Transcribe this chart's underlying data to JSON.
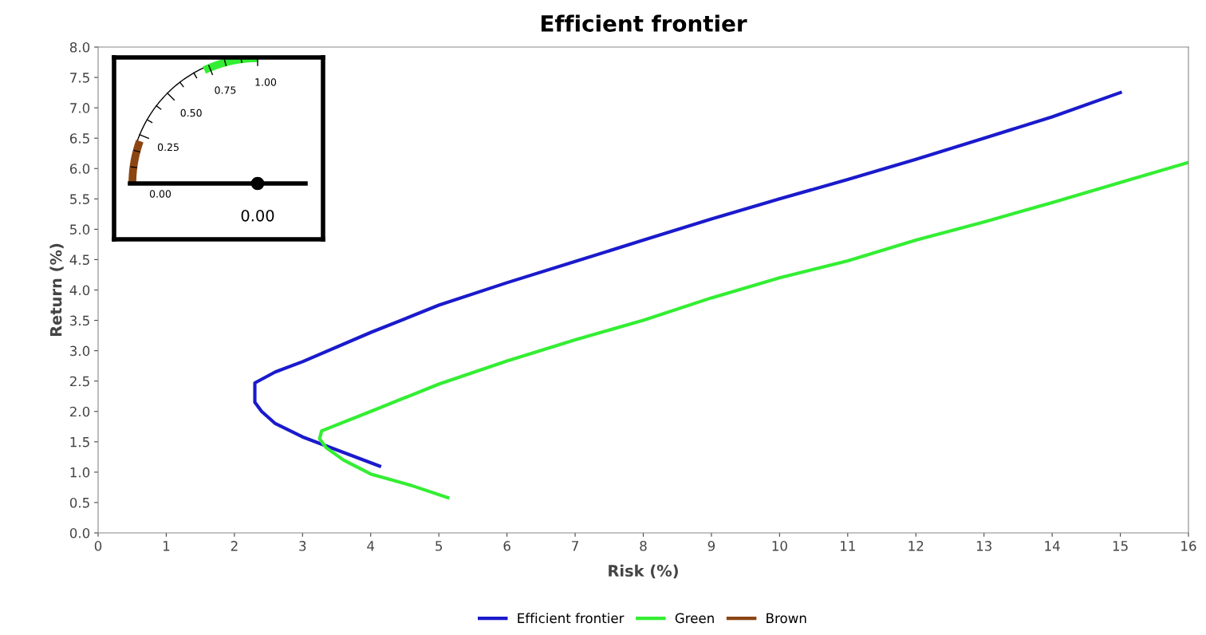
{
  "chart_data": [
    {
      "type": "line",
      "title": "Efficient frontier",
      "xlabel": "Risk (%)",
      "ylabel": "Return (%)",
      "xlim": [
        0,
        16
      ],
      "xticks": [
        0,
        1,
        2,
        3,
        4,
        5,
        6,
        7,
        8,
        9,
        10,
        11,
        12,
        13,
        14,
        15,
        16
      ],
      "ylim": [
        0.0,
        8.0
      ],
      "yticks": [
        {
          "value": 0,
          "label": "0.0"
        },
        {
          "value": 0.5,
          "label": "0.5"
        },
        {
          "value": 1,
          "label": "1.0"
        },
        {
          "value": 1.5,
          "label": "1.5"
        },
        {
          "value": 2,
          "label": "2.0"
        },
        {
          "value": 2.5,
          "label": "2.5"
        },
        {
          "value": 3,
          "label": "3.0"
        },
        {
          "value": 3.5,
          "label": "3.5"
        },
        {
          "value": 4,
          "label": "4.0"
        },
        {
          "value": 4.5,
          "label": "4.5"
        },
        {
          "value": 5,
          "label": "5.0"
        },
        {
          "value": 5.5,
          "label": "5.5"
        },
        {
          "value": 6,
          "label": "6.0"
        },
        {
          "value": 6.5,
          "label": "6.5"
        },
        {
          "value": 7,
          "label": "7.0"
        },
        {
          "value": 7.5,
          "label": "7.5"
        },
        {
          "value": 8,
          "label": "8.0"
        }
      ],
      "grid": false,
      "legend": "bottom",
      "marker": "none",
      "line_style": "solid",
      "series": [
        {
          "name": "Efficient frontier",
          "color": "#1a1acc",
          "x": [
            4.13,
            3.0,
            2.6,
            2.4,
            2.3,
            2.3,
            2.6,
            3.0,
            4,
            5,
            6,
            7,
            8,
            9,
            10,
            11,
            12,
            13,
            14,
            15
          ],
          "values": [
            1.1,
            1.58,
            1.8,
            2.0,
            2.15,
            2.47,
            2.65,
            2.82,
            3.3,
            3.75,
            4.12,
            4.47,
            4.82,
            5.17,
            5.5,
            5.82,
            6.15,
            6.5,
            6.85,
            7.25
          ]
        },
        {
          "name": "Green",
          "color": "#33ee33",
          "x": [
            5.13,
            4.6,
            4.0,
            3.6,
            3.35,
            3.25,
            3.28,
            4,
            5,
            6,
            7,
            8,
            9,
            10,
            11,
            12,
            13,
            14,
            15,
            16
          ],
          "values": [
            0.58,
            0.78,
            0.97,
            1.2,
            1.4,
            1.55,
            1.68,
            2.0,
            2.45,
            2.83,
            3.18,
            3.5,
            3.87,
            4.2,
            4.48,
            4.82,
            5.12,
            5.44,
            5.77,
            6.1
          ]
        },
        {
          "name": "Brown",
          "color": "#8b4513"
        }
      ]
    },
    {
      "type": "other",
      "annotations": [
        "0.00",
        "0.25",
        "0.50",
        "0.75",
        "1.00",
        "0.00"
      ]
    }
  ]
}
